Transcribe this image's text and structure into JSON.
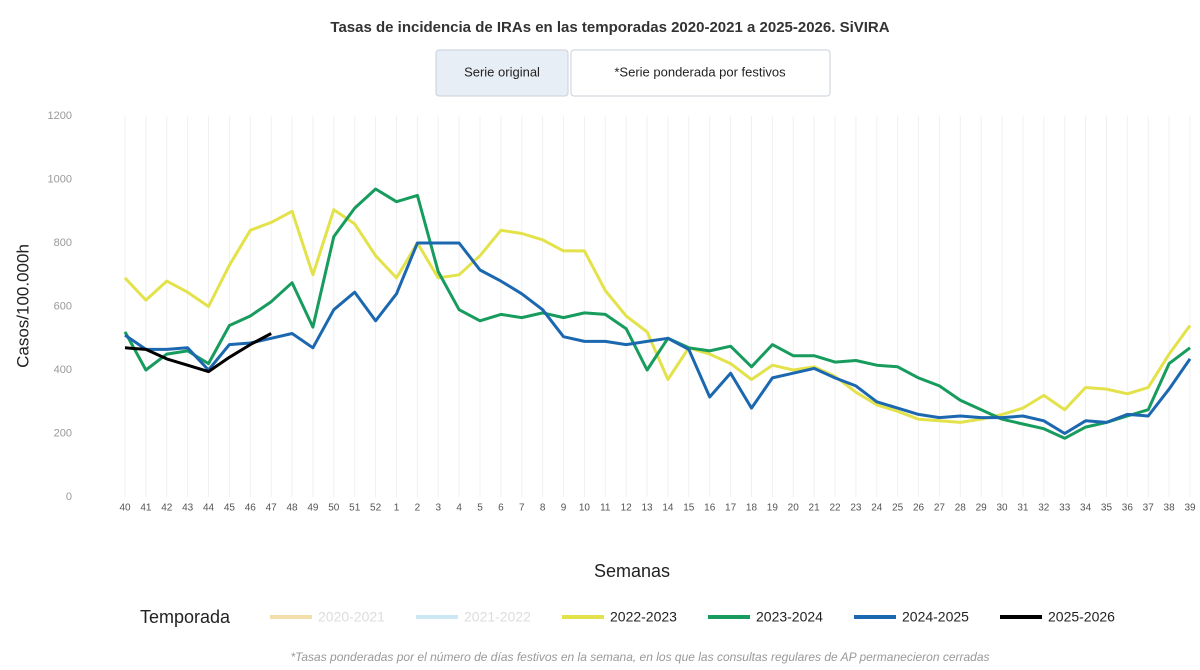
{
  "chart_data": {
    "type": "line",
    "title": "Tasas de incidencia de IRAs en las temporadas 2020-2021 a 2025-2026. SiVIRA",
    "buttons": [
      "Serie original",
      "*Serie ponderada por festivos"
    ],
    "x_label": "Semanas",
    "y_label": "Casos/100.000h",
    "legend_title": "Temporada",
    "footnote": "*Tasas ponderadas por el número de días festivos en la semana, en los que las consultas regulares de AP permanecieron cerradas",
    "categories": [
      "40",
      "41",
      "42",
      "43",
      "44",
      "45",
      "46",
      "47",
      "48",
      "49",
      "50",
      "51",
      "52",
      "1",
      "2",
      "3",
      "4",
      "5",
      "6",
      "7",
      "8",
      "9",
      "10",
      "11",
      "12",
      "13",
      "14",
      "15",
      "16",
      "17",
      "18",
      "19",
      "20",
      "21",
      "22",
      "23",
      "24",
      "25",
      "26",
      "27",
      "28",
      "29",
      "30",
      "31",
      "32",
      "33",
      "34",
      "35",
      "36",
      "37",
      "38",
      "39"
    ],
    "ylim": [
      0,
      1200
    ],
    "yticks": [
      0,
      200,
      400,
      600,
      800,
      1000,
      1200
    ],
    "grid": "x",
    "legend": "bottom",
    "series": [
      {
        "name": "2020-2021",
        "color": "#e8c15c",
        "visible": false
      },
      {
        "name": "2021-2022",
        "color": "#9fd0ec",
        "visible": false
      },
      {
        "name": "2022-2023",
        "color": "#e3e24a",
        "values": [
          690,
          620,
          680,
          645,
          600,
          730,
          840,
          865,
          900,
          700,
          905,
          860,
          760,
          690,
          800,
          690,
          700,
          760,
          840,
          830,
          810,
          775,
          775,
          650,
          570,
          520,
          370,
          470,
          450,
          420,
          370,
          415,
          400,
          410,
          380,
          330,
          290,
          270,
          245,
          240,
          235,
          245,
          260,
          280,
          320,
          275,
          345,
          340,
          325,
          345,
          450,
          540
        ]
      },
      {
        "name": "2023-2024",
        "color": "#179c5e",
        "values": [
          520,
          400,
          450,
          460,
          420,
          540,
          570,
          615,
          675,
          535,
          820,
          910,
          970,
          930,
          950,
          710,
          590,
          555,
          575,
          565,
          580,
          565,
          580,
          575,
          530,
          400,
          500,
          470,
          460,
          475,
          410,
          480,
          445,
          445,
          425,
          430,
          415,
          410,
          375,
          350,
          305,
          275,
          245,
          230,
          215,
          185,
          220,
          235,
          255,
          275,
          420,
          470
        ]
      },
      {
        "name": "2024-2025",
        "color": "#1b68b0",
        "values": [
          510,
          465,
          465,
          470,
          400,
          480,
          485,
          500,
          515,
          470,
          590,
          645,
          555,
          640,
          800,
          800,
          800,
          715,
          680,
          640,
          590,
          505,
          490,
          490,
          480,
          490,
          500,
          465,
          315,
          390,
          280,
          375,
          390,
          405,
          375,
          350,
          300,
          280,
          260,
          250,
          255,
          250,
          250,
          255,
          240,
          200,
          240,
          235,
          260,
          255,
          340,
          435
        ]
      },
      {
        "name": "2025-2026",
        "color": "#000000",
        "values": [
          470,
          465,
          435,
          415,
          395,
          440,
          480,
          515,
          null,
          null,
          null,
          null,
          null,
          null,
          null,
          null,
          null,
          null,
          null,
          null,
          null,
          null,
          null,
          null,
          null,
          null,
          null,
          null,
          null,
          null,
          null,
          null,
          null,
          null,
          null,
          null,
          null,
          null,
          null,
          null,
          null,
          null,
          null,
          null,
          null,
          null,
          null,
          null,
          null,
          null,
          null,
          null
        ]
      }
    ]
  }
}
